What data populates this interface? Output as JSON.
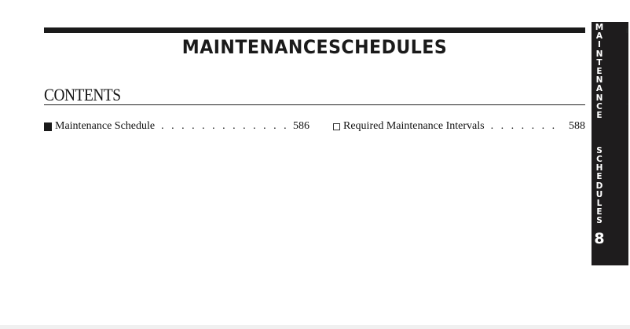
{
  "header": {
    "title": "MAINTENANCESCHEDULES"
  },
  "contents": {
    "heading": "CONTENTS",
    "entries": [
      {
        "label": "Maintenance Schedule",
        "dots": ". . . . . . . . . . . . . . . . . . . . . . . . .",
        "page": "586",
        "bullet": "filled-square"
      },
      {
        "label": "Required Maintenance Intervals",
        "dots": ". . . . . . . . . . . . . . . . . . . . .",
        "page": "588",
        "bullet": "open-square"
      }
    ]
  },
  "side_tab": {
    "text": "MAINTENANCE SCHEDULES",
    "chapter": "8"
  }
}
